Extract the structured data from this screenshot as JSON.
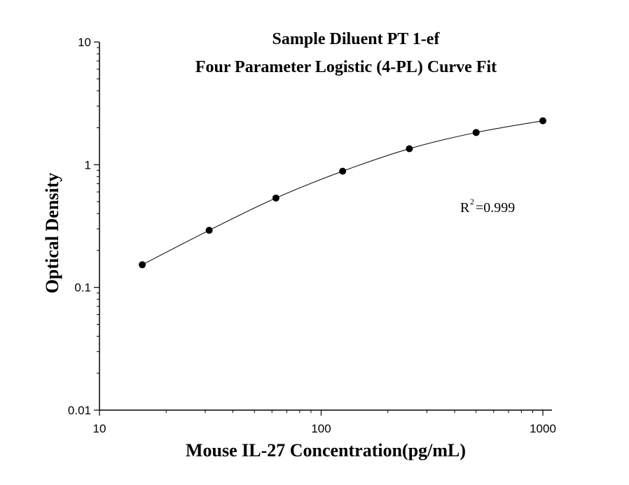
{
  "chart_data": {
    "type": "scatter",
    "title": "Sample Diluent PT 1-ef",
    "subtitle": "Four Parameter Logistic (4-PL) Curve Fit",
    "xlabel": "Mouse IL-27 Concentration(pg/mL)",
    "ylabel": "Optical Density",
    "x_scale": "log",
    "y_scale": "log",
    "xlim": [
      10,
      1000
    ],
    "ylim": [
      0.01,
      10
    ],
    "x_ticks": [
      "10",
      "100",
      "1000"
    ],
    "y_ticks": [
      "10",
      "1",
      "0.1",
      "0.01"
    ],
    "x": [
      15.6,
      31.25,
      62.5,
      125,
      250,
      500,
      1000
    ],
    "y": [
      0.153,
      0.292,
      0.535,
      0.885,
      1.35,
      1.83,
      2.28
    ],
    "fit": "4-PL",
    "annotation": {
      "r_base": "R",
      "r_exp": "2",
      "r_value": "=0.999"
    }
  }
}
